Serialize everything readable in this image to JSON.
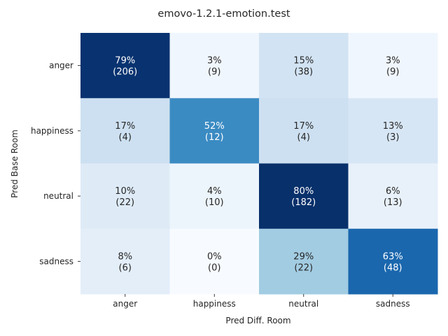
{
  "chart_data": {
    "type": "heatmap",
    "title": "emovo-1.2.1-emotion.test",
    "xlabel": "Pred Diff. Room",
    "ylabel": "Pred Base Room",
    "x_categories": [
      "anger",
      "happiness",
      "neutral",
      "sadness"
    ],
    "y_categories": [
      "anger",
      "happiness",
      "neutral",
      "sadness"
    ],
    "percent_labels": [
      [
        "79%",
        "3%",
        "15%",
        "3%"
      ],
      [
        "17%",
        "52%",
        "17%",
        "13%"
      ],
      [
        "10%",
        "4%",
        "80%",
        "6%"
      ],
      [
        "8%",
        "0%",
        "29%",
        "63%"
      ]
    ],
    "count_labels": [
      [
        "(206)",
        "(9)",
        "(38)",
        "(9)"
      ],
      [
        "(4)",
        "(12)",
        "(4)",
        "(3)"
      ],
      [
        "(22)",
        "(10)",
        "(182)",
        "(13)"
      ],
      [
        "(6)",
        "(0)",
        "(22)",
        "(48)"
      ]
    ],
    "values": [
      [
        0.79,
        0.03,
        0.15,
        0.03
      ],
      [
        0.17,
        0.52,
        0.17,
        0.13
      ],
      [
        0.1,
        0.04,
        0.8,
        0.06
      ],
      [
        0.08,
        0.0,
        0.29,
        0.63
      ]
    ],
    "colormap": "Blues",
    "colorbar": false,
    "grid": false,
    "dark_text_color": "#262626",
    "light_text_color": "#ffffff"
  }
}
